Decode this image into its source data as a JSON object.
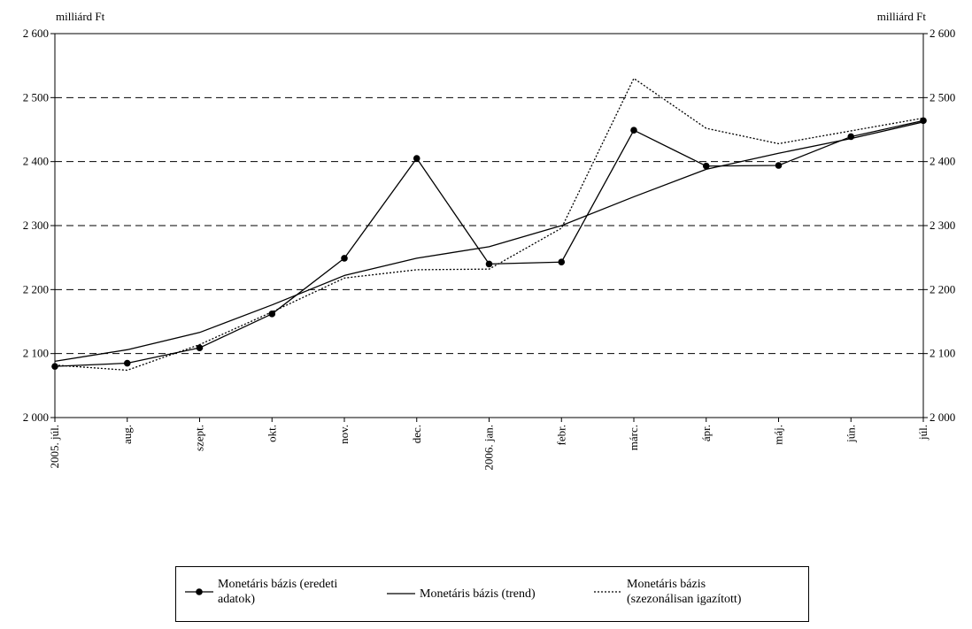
{
  "chart_data": {
    "type": "line",
    "y_unit_left": "milliárd Ft",
    "y_unit_right": "milliárd Ft",
    "ylim": [
      2000,
      2600
    ],
    "yticks": [
      2000,
      2100,
      2200,
      2300,
      2400,
      2500,
      2600
    ],
    "ytick_labels": [
      "2 000",
      "2 100",
      "2 200",
      "2 300",
      "2 400",
      "2 500",
      "2 600"
    ],
    "grid": "horizontal dashed",
    "categories": [
      "2005. júl.",
      "aug.",
      "szept.",
      "okt.",
      "nov.",
      "dec.",
      "2006. jan.",
      "febr.",
      "márc.",
      "ápr.",
      "máj.",
      "jún.",
      "júl."
    ],
    "series": [
      {
        "name": "Monetáris bázis (eredeti adatok)",
        "style": "solid-markers",
        "values": [
          2080,
          2085,
          2109,
          2162,
          2249,
          2405,
          2240,
          2243,
          2449,
          2393,
          2394,
          2439,
          2464
        ]
      },
      {
        "name": "Monetáris bázis (trend)",
        "style": "solid",
        "values": [
          2088,
          2106,
          2133,
          2176,
          2222,
          2249,
          2267,
          2300,
          2345,
          2388,
          2413,
          2436,
          2462
        ]
      },
      {
        "name": "Monetáris bázis (szezonálisan igazított)",
        "style": "dotted",
        "values": [
          2082,
          2074,
          2114,
          2165,
          2218,
          2231,
          2232,
          2296,
          2530,
          2452,
          2428,
          2448,
          2468
        ]
      }
    ],
    "legend": {
      "position": "bottom",
      "items": [
        {
          "text": "Monetáris bázis (eredeti adatok)",
          "line1": "Monetáris bázis (eredeti",
          "line2": "adatok)"
        },
        {
          "text": "Monetáris bázis (trend)",
          "line1": "Monetáris bázis (trend)",
          "line2": ""
        },
        {
          "text": "Monetáris bázis (szezonálisan igazított)",
          "line1": "Monetáris bázis",
          "line2": "(szezonálisan igazított)"
        }
      ]
    },
    "colors": {
      "line": "#000000",
      "grid": "#000000",
      "background": "#ffffff"
    }
  }
}
